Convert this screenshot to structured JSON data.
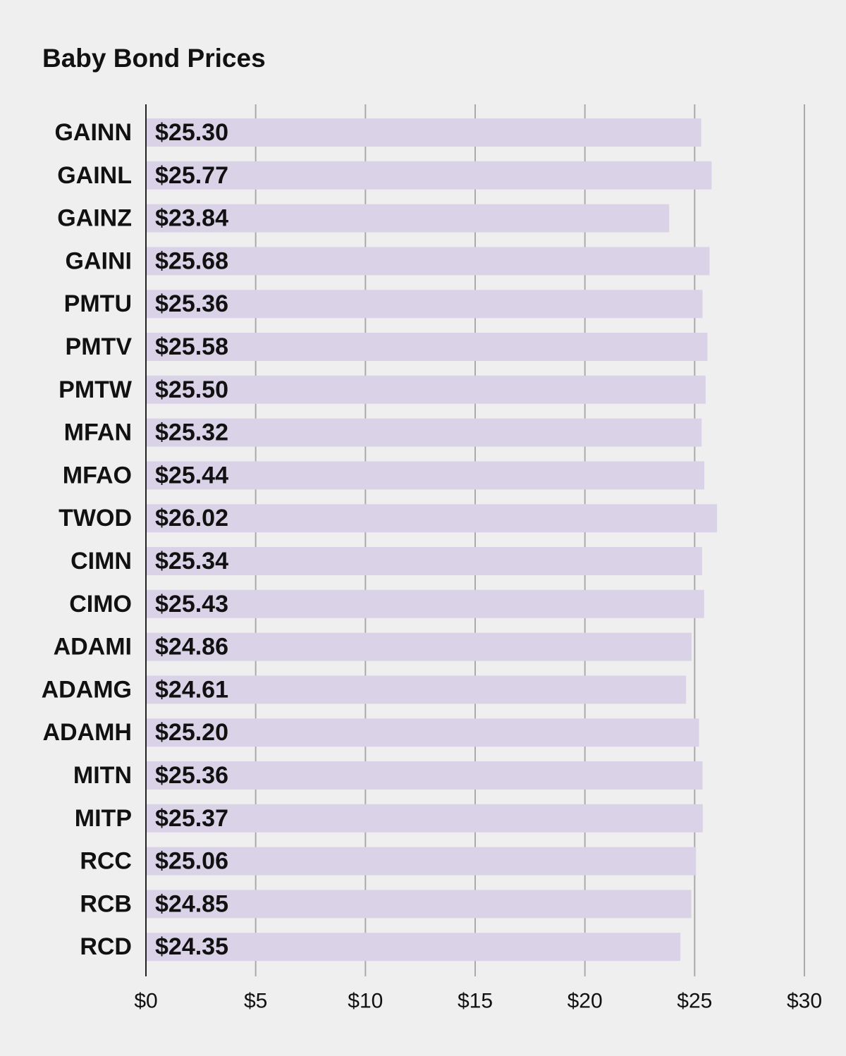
{
  "chart_data": {
    "type": "bar",
    "orientation": "horizontal",
    "title": "Baby Bond Prices",
    "xlabel": "",
    "ylabel": "",
    "categories": [
      "GAINN",
      "GAINL",
      "GAINZ",
      "GAINI",
      "PMTU",
      "PMTV",
      "PMTW",
      "MFAN",
      "MFAO",
      "TWOD",
      "CIMN",
      "CIMO",
      "ADAMI",
      "ADAMG",
      "ADAMH",
      "MITN",
      "MITP",
      "RCC",
      "RCB",
      "RCD"
    ],
    "values": [
      25.3,
      25.77,
      23.84,
      25.68,
      25.36,
      25.58,
      25.5,
      25.32,
      25.44,
      26.02,
      25.34,
      25.43,
      24.86,
      24.61,
      25.2,
      25.36,
      25.37,
      25.06,
      24.85,
      24.35
    ],
    "value_labels": [
      "$25.30",
      "$25.77",
      "$23.84",
      "$25.68",
      "$25.36",
      "$25.58",
      "$25.50",
      "$25.32",
      "$25.44",
      "$26.02",
      "$25.34",
      "$25.43",
      "$24.86",
      "$24.61",
      "$25.20",
      "$25.36",
      "$25.37",
      "$25.06",
      "$24.85",
      "$24.35"
    ],
    "xlim": [
      0,
      30
    ],
    "ticks": [
      0,
      5,
      10,
      15,
      20,
      25,
      30
    ],
    "tick_labels": [
      "$0",
      "$5",
      "$10",
      "$15",
      "$20",
      "$25",
      "$30"
    ],
    "grid": true,
    "colors": {
      "bar": "#dad3e8",
      "background": "#efefef",
      "grid": "#aaaaaa",
      "axis": "#222222",
      "text": "#111111"
    }
  }
}
